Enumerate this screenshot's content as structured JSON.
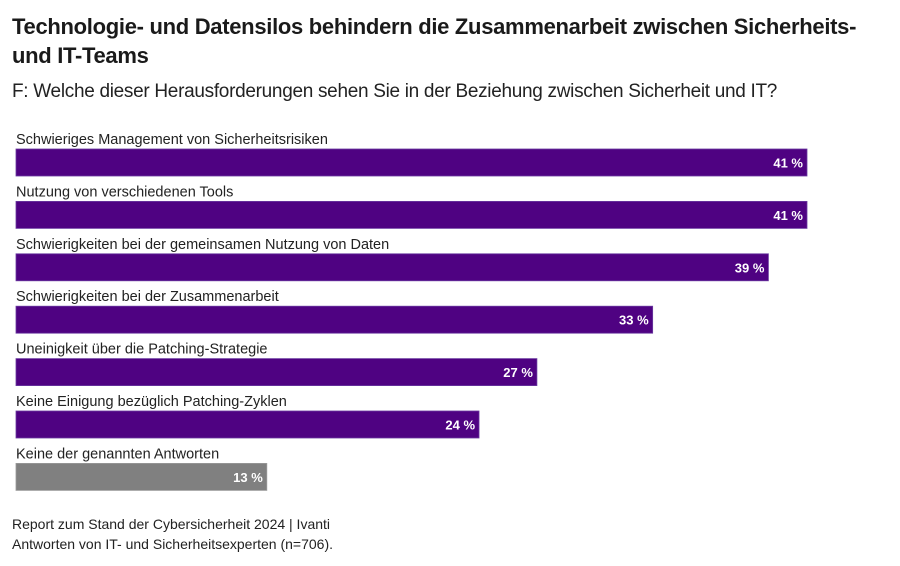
{
  "title": "Technologie- und Datensilos behindern die Zusammenarbeit zwischen Sicherheits- und IT-Teams",
  "subtitle": "F: Welche dieser Herausforderungen sehen Sie in der Beziehung zwischen Sicherheit und IT?",
  "footer": {
    "source": "Report zum Stand der Cybersicherheit 2024 | Ivanti",
    "note": "Antworten von IT- und Sicherheitsexperten (n=706)."
  },
  "colors": {
    "primary_bar": "#4f0282",
    "other_bar": "#808080",
    "value_label": "#ffffff",
    "category_label": "#222222"
  },
  "chart_data": {
    "type": "bar",
    "orientation": "horizontal",
    "title": "Technologie- und Datensilos behindern die Zusammenarbeit zwischen Sicherheits- und IT-Teams",
    "subtitle": "F: Welche dieser Herausforderungen sehen Sie in der Beziehung zwischen Sicherheit und IT?",
    "xlabel": "",
    "ylabel": "",
    "unit": "%",
    "xlim": [
      0,
      41
    ],
    "grid": false,
    "legend": "none",
    "categories": [
      "Schwieriges Management von Sicherheitsrisiken",
      "Nutzung von verschiedenen Tools",
      "Schwierigkeiten bei der gemeinsamen Nutzung von Daten",
      "Schwierigkeiten bei der Zusammenarbeit",
      "Uneinigkeit über die Patching-Strategie",
      "Keine Einigung bezüglich Patching-Zyklen",
      "Keine der genannten Antworten"
    ],
    "values": [
      41,
      41,
      39,
      33,
      27,
      24,
      13
    ],
    "value_labels": [
      "41 %",
      "41 %",
      "39 %",
      "33 %",
      "27 %",
      "24 %",
      "13 %"
    ],
    "highlight": [
      "primary",
      "primary",
      "primary",
      "primary",
      "primary",
      "primary",
      "other"
    ]
  }
}
